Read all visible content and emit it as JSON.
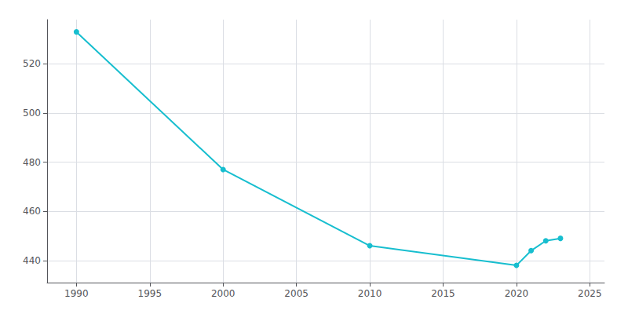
{
  "chart_data": {
    "type": "line",
    "x": [
      1990,
      2000,
      2010,
      2020,
      2021,
      2022,
      2023
    ],
    "values": [
      533,
      477,
      446,
      438,
      444,
      448,
      449
    ],
    "color": "#17BECF",
    "marker": "circle",
    "xlim": [
      1988,
      2026
    ],
    "ylim": [
      431,
      538
    ],
    "xticks": [
      1990,
      1995,
      2000,
      2005,
      2010,
      2015,
      2020,
      2025
    ],
    "yticks": [
      440,
      460,
      480,
      500,
      520
    ],
    "grid": true
  }
}
